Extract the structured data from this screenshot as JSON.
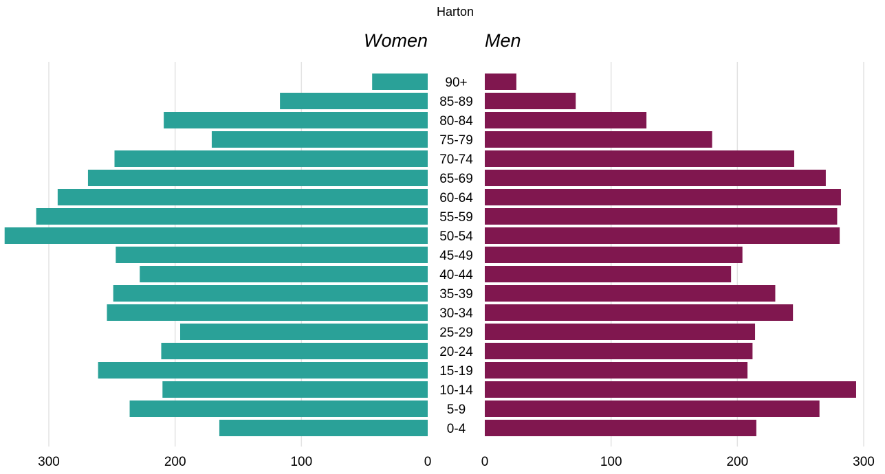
{
  "chart_data": {
    "type": "bar",
    "orientation": "horizontal-pyramid",
    "title": "Harton",
    "left_label": "Women",
    "right_label": "Men",
    "categories": [
      "0-4",
      "5-9",
      "10-14",
      "15-19",
      "20-24",
      "25-29",
      "30-34",
      "35-39",
      "40-44",
      "45-49",
      "50-54",
      "55-59",
      "60-64",
      "65-69",
      "70-74",
      "75-79",
      "80-84",
      "85-89",
      "90+"
    ],
    "series": [
      {
        "name": "Women",
        "color": "#2aa198",
        "values": [
          165,
          236,
          210,
          261,
          211,
          196,
          254,
          249,
          228,
          247,
          335,
          310,
          293,
          269,
          248,
          171,
          209,
          117,
          44
        ]
      },
      {
        "name": "Men",
        "color": "#80174f",
        "values": [
          215,
          265,
          294,
          208,
          212,
          214,
          244,
          230,
          195,
          204,
          281,
          279,
          282,
          270,
          245,
          180,
          128,
          72,
          25
        ]
      }
    ],
    "xlim": [
      0,
      300
    ],
    "xticks": [
      0,
      100,
      200,
      300
    ],
    "grid": true
  }
}
